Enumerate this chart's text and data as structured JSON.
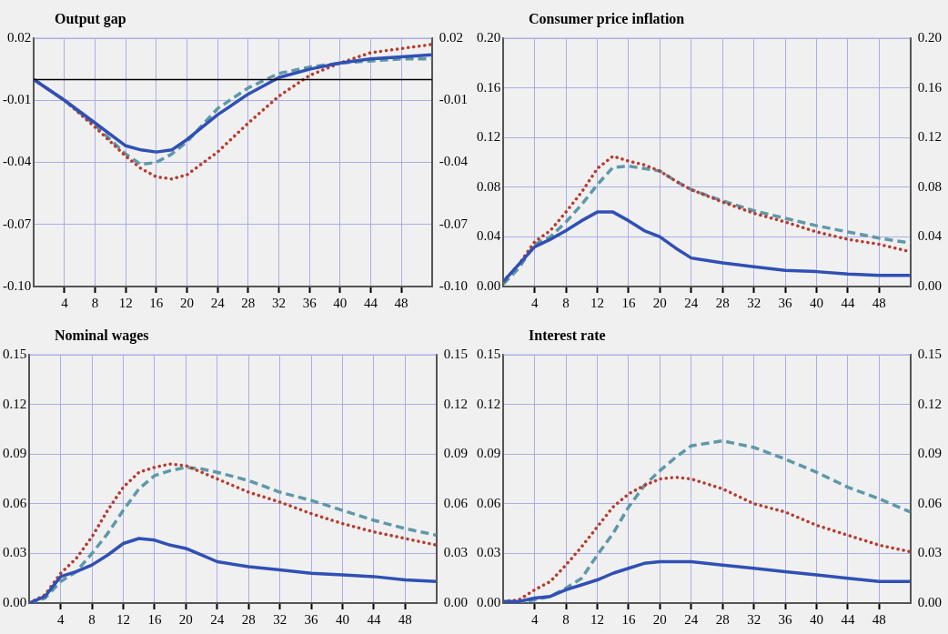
{
  "chart_data": [
    {
      "type": "line",
      "title": "Output gap",
      "x": [
        0,
        4,
        8,
        12,
        14,
        16,
        18,
        20,
        24,
        28,
        32,
        36,
        40,
        44,
        48,
        52
      ],
      "xlim": [
        0,
        52
      ],
      "xticks": [
        4,
        8,
        12,
        16,
        20,
        24,
        28,
        32,
        36,
        40,
        44,
        48
      ],
      "ylim": [
        -0.1,
        0.02
      ],
      "yticks": [
        {
          "value": -0.1,
          "label": "-0.10"
        },
        -0.07,
        -0.04,
        -0.01,
        0.02
      ],
      "y2lim": [
        -0.1,
        0.02
      ],
      "y2ticks": [
        {
          "value": -0.1,
          "label": "-0.10"
        },
        -0.07,
        -0.04,
        -0.01,
        0.02
      ],
      "grid": true,
      "legend": false,
      "marker": "none",
      "ref_lines": [
        {
          "axis": "y",
          "value": 0,
          "color": "#000000"
        }
      ],
      "series": [
        {
          "color": "#3050b4",
          "line_style": "solid",
          "values": [
            0,
            -0.01,
            -0.021,
            -0.032,
            -0.034,
            -0.035,
            -0.034,
            -0.029,
            -0.017,
            -0.007,
            0.001,
            0.005,
            0.008,
            0.01,
            0.011,
            0.012
          ]
        },
        {
          "color": "#b83a2c",
          "line_style": "dotted",
          "values": [
            0,
            -0.01,
            -0.023,
            -0.037,
            -0.043,
            -0.047,
            -0.048,
            -0.046,
            -0.035,
            -0.021,
            -0.008,
            0.002,
            0.008,
            0.013,
            0.015,
            0.017
          ]
        },
        {
          "color": "#5f98a8",
          "line_style": "dashed",
          "values": [
            0,
            -0.01,
            -0.022,
            -0.036,
            -0.041,
            -0.04,
            -0.036,
            -0.03,
            -0.014,
            -0.004,
            0.003,
            0.006,
            0.008,
            0.009,
            0.01,
            0.01
          ]
        }
      ]
    },
    {
      "type": "line",
      "title": "Consumer price inflation",
      "x": [
        0,
        2,
        4,
        6,
        8,
        10,
        12,
        14,
        16,
        18,
        20,
        22,
        24,
        28,
        32,
        36,
        40,
        44,
        48,
        52
      ],
      "xlim": [
        0,
        52
      ],
      "xticks": [
        4,
        8,
        12,
        16,
        20,
        24,
        28,
        32,
        36,
        40,
        44,
        48
      ],
      "ylim": [
        0,
        0.2
      ],
      "yticks": [
        {
          "value": 0,
          "label": "0.00"
        },
        0.04,
        0.08,
        0.12,
        0.16,
        {
          "value": 0.2,
          "label": "0.20"
        }
      ],
      "y2lim": [
        0,
        0.2
      ],
      "y2ticks": [
        {
          "value": 0,
          "label": "0.00"
        },
        0.04,
        0.08,
        0.12,
        0.16,
        {
          "value": 0.2,
          "label": "0.20"
        }
      ],
      "grid": true,
      "legend": false,
      "marker": "none",
      "series": [
        {
          "color": "#3050b4",
          "line_style": "solid",
          "values": [
            0.004,
            0.018,
            0.032,
            0.038,
            0.045,
            0.053,
            0.06,
            0.06,
            0.053,
            0.045,
            0.04,
            0.031,
            0.023,
            0.019,
            0.016,
            0.013,
            0.012,
            0.01,
            0.009,
            0.009
          ]
        },
        {
          "color": "#b83a2c",
          "line_style": "dotted",
          "values": [
            0.004,
            0.018,
            0.036,
            0.045,
            0.06,
            0.076,
            0.095,
            0.105,
            0.101,
            0.098,
            0.093,
            0.085,
            0.078,
            0.068,
            0.059,
            0.052,
            0.044,
            0.038,
            0.034,
            0.028
          ]
        },
        {
          "color": "#5f98a8",
          "line_style": "dashed",
          "values": [
            0.002,
            0.015,
            0.034,
            0.04,
            0.052,
            0.066,
            0.082,
            0.096,
            0.097,
            0.095,
            0.093,
            0.085,
            0.078,
            0.069,
            0.061,
            0.055,
            0.049,
            0.044,
            0.039,
            0.035
          ]
        }
      ]
    },
    {
      "type": "line",
      "title": "Nominal wages",
      "x": [
        0,
        2,
        4,
        6,
        8,
        10,
        12,
        14,
        16,
        18,
        20,
        22,
        24,
        28,
        32,
        36,
        40,
        44,
        48,
        52
      ],
      "xlim": [
        0,
        52
      ],
      "xticks": [
        4,
        8,
        12,
        16,
        20,
        24,
        28,
        32,
        36,
        40,
        44,
        48
      ],
      "ylim": [
        0,
        0.15
      ],
      "yticks": [
        {
          "value": 0,
          "label": "0.00"
        },
        0.03,
        0.06,
        0.09,
        0.12,
        0.15
      ],
      "y2lim": [
        0,
        0.15
      ],
      "y2ticks": [
        {
          "value": 0,
          "label": "0.00"
        },
        0.03,
        0.06,
        0.09,
        0.12,
        0.15
      ],
      "grid": true,
      "legend": false,
      "marker": "none",
      "series": [
        {
          "color": "#3050b4",
          "line_style": "solid",
          "values": [
            0,
            0.004,
            0.016,
            0.019,
            0.023,
            0.029,
            0.036,
            0.039,
            0.038,
            0.035,
            0.033,
            0.029,
            0.025,
            0.022,
            0.02,
            0.018,
            0.017,
            0.016,
            0.014,
            0.013
          ]
        },
        {
          "color": "#b83a2c",
          "line_style": "dotted",
          "values": [
            0,
            0.005,
            0.018,
            0.027,
            0.04,
            0.056,
            0.07,
            0.079,
            0.082,
            0.084,
            0.083,
            0.079,
            0.075,
            0.067,
            0.061,
            0.054,
            0.048,
            0.043,
            0.039,
            0.035
          ]
        },
        {
          "color": "#5f98a8",
          "line_style": "dashed",
          "values": [
            0,
            0.003,
            0.013,
            0.019,
            0.03,
            0.042,
            0.056,
            0.069,
            0.077,
            0.08,
            0.082,
            0.081,
            0.079,
            0.074,
            0.067,
            0.062,
            0.056,
            0.05,
            0.045,
            0.041
          ]
        }
      ]
    },
    {
      "type": "line",
      "title": "Interest rate",
      "x": [
        0,
        2,
        4,
        6,
        8,
        10,
        12,
        14,
        16,
        18,
        20,
        22,
        24,
        28,
        32,
        36,
        40,
        44,
        48,
        52
      ],
      "xlim": [
        0,
        52
      ],
      "xticks": [
        4,
        8,
        12,
        16,
        20,
        24,
        28,
        32,
        36,
        40,
        44,
        48
      ],
      "ylim": [
        0,
        0.15
      ],
      "yticks": [
        {
          "value": 0,
          "label": "0.00"
        },
        0.03,
        0.06,
        0.09,
        0.12,
        0.15
      ],
      "y2lim": [
        0,
        0.15
      ],
      "y2ticks": [
        {
          "value": 0,
          "label": "0.00"
        },
        0.03,
        0.06,
        0.09,
        0.12,
        0.15
      ],
      "grid": true,
      "legend": false,
      "marker": "none",
      "series": [
        {
          "color": "#3050b4",
          "line_style": "solid",
          "values": [
            0.001,
            0.001,
            0.003,
            0.004,
            0.008,
            0.011,
            0.014,
            0.018,
            0.021,
            0.024,
            0.025,
            0.025,
            0.025,
            0.023,
            0.021,
            0.019,
            0.017,
            0.015,
            0.013,
            0.013
          ]
        },
        {
          "color": "#b83a2c",
          "line_style": "dotted",
          "values": [
            0.001,
            0.002,
            0.008,
            0.013,
            0.023,
            0.034,
            0.046,
            0.058,
            0.066,
            0.071,
            0.075,
            0.076,
            0.075,
            0.069,
            0.06,
            0.055,
            0.047,
            0.041,
            0.035,
            0.031
          ]
        },
        {
          "color": "#5f98a8",
          "line_style": "dashed",
          "values": [
            0,
            0,
            0.002,
            0.004,
            0.009,
            0.015,
            0.029,
            0.042,
            0.058,
            0.071,
            0.08,
            0.088,
            0.095,
            0.098,
            0.094,
            0.087,
            0.079,
            0.07,
            0.063,
            0.055
          ]
        }
      ]
    }
  ]
}
